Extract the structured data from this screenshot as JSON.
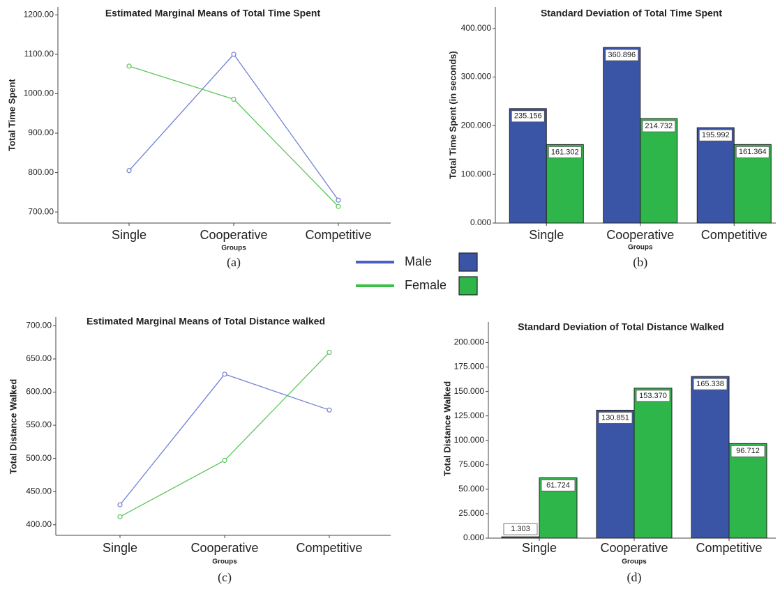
{
  "chart_data": [
    {
      "type": "line",
      "title": "Estimated Marginal Means of Total Time Spent",
      "y_label": "Total Time Spent",
      "x_label": "Groups",
      "caption": "(a)",
      "categories": [
        "Single",
        "Cooperative",
        "Competitive"
      ],
      "series": [
        {
          "color": "#6f80d6",
          "values": [
            805,
            1100,
            730
          ]
        },
        {
          "color": "#5cc65c",
          "values": [
            1070,
            986,
            714
          ]
        }
      ],
      "ylim": [
        672,
        1220
      ],
      "yticks": [
        {
          "value": 700,
          "label": "700.00"
        },
        {
          "value": 800,
          "label": "800.00"
        },
        {
          "value": 900,
          "label": "900.00"
        },
        {
          "value": 1000,
          "label": "1000.00"
        },
        {
          "value": 1100,
          "label": "1100.00"
        },
        {
          "value": 1200,
          "label": "1200.00"
        }
      ]
    },
    {
      "type": "bar",
      "title": "Standard Deviation of Total Time Spent",
      "y_label": "Total Time Spent (in seconds)",
      "x_label": "Groups",
      "caption": "(b)",
      "categories": [
        "Single",
        "Cooperative",
        "Competitive"
      ],
      "series": [
        {
          "color": "#3b55a6",
          "values": [
            235.156,
            360.896,
            195.992
          ],
          "value_labels": [
            "235.156",
            "360.896",
            "195.992"
          ]
        },
        {
          "color": "#2fb64b",
          "values": [
            161.302,
            214.732,
            161.364
          ],
          "value_labels": [
            "161.302",
            "214.732",
            "161.364"
          ]
        }
      ],
      "ylim": [
        0,
        444
      ],
      "yticks": [
        {
          "value": 0,
          "label": "0.000"
        },
        {
          "value": 100,
          "label": "100.000"
        },
        {
          "value": 200,
          "label": "200.000"
        },
        {
          "value": 300,
          "label": "300.000"
        },
        {
          "value": 400,
          "label": "400.000"
        }
      ]
    },
    {
      "type": "line",
      "title": "Estimated Marginal Means of Total Distance walked",
      "y_label": "Total Distance Walked",
      "x_label": "Groups",
      "caption": "(c)",
      "categories": [
        "Single",
        "Cooperative",
        "Competitive"
      ],
      "series": [
        {
          "color": "#6f80d6",
          "values": [
            430,
            627,
            573
          ]
        },
        {
          "color": "#5cc65c",
          "values": [
            412,
            497,
            660
          ]
        }
      ],
      "ylim": [
        384,
        713
      ],
      "yticks": [
        {
          "value": 400,
          "label": "400.00"
        },
        {
          "value": 450,
          "label": "450.00"
        },
        {
          "value": 500,
          "label": "500.00"
        },
        {
          "value": 550,
          "label": "550.00"
        },
        {
          "value": 600,
          "label": "600.00"
        },
        {
          "value": 650,
          "label": "650.00"
        },
        {
          "value": 700,
          "label": "700.00"
        }
      ]
    },
    {
      "type": "bar",
      "title": "Standard Deviation of Total Distance Walked",
      "y_label": "Total Distance Walked",
      "x_label": "Groups",
      "caption": "(d)",
      "categories": [
        "Single",
        "Cooperative",
        "Competitive"
      ],
      "series": [
        {
          "color": "#3b55a6",
          "values": [
            1.303,
            130.851,
            165.338
          ],
          "value_labels": [
            "1.303",
            "130.851",
            "165.338"
          ]
        },
        {
          "color": "#2fb64b",
          "values": [
            61.724,
            153.37,
            96.712
          ],
          "value_labels": [
            "61.724",
            "153.370",
            "96.712"
          ]
        }
      ],
      "ylim": [
        0,
        221
      ],
      "yticks": [
        {
          "value": 0,
          "label": "0.000"
        },
        {
          "value": 25,
          "label": "25.000"
        },
        {
          "value": 50,
          "label": "50.000"
        },
        {
          "value": 75,
          "label": "75.000"
        },
        {
          "value": 100,
          "label": "100.000"
        },
        {
          "value": 125,
          "label": "125.000"
        },
        {
          "value": 150,
          "label": "150.000"
        },
        {
          "value": 175,
          "label": "175.000"
        },
        {
          "value": 200,
          "label": "200.000"
        }
      ]
    }
  ],
  "legend": [
    {
      "name": "Male",
      "line_color": "#4a5fc4",
      "box_color": "#3b55a6"
    },
    {
      "name": "Female",
      "line_color": "#3cc048",
      "box_color": "#2fb64b"
    }
  ]
}
